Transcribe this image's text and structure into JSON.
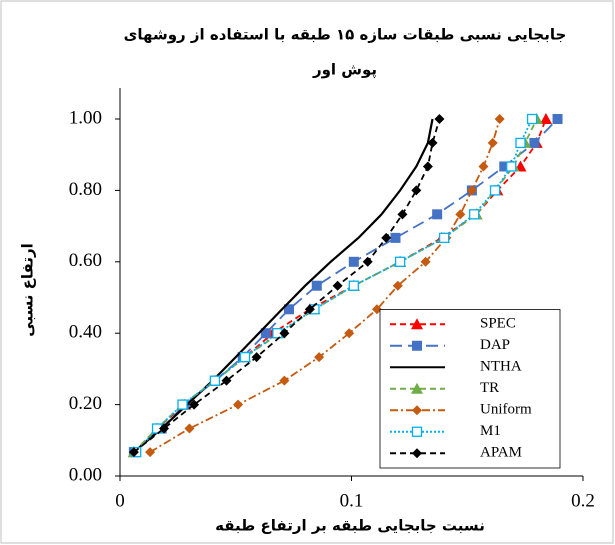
{
  "chart_data": {
    "type": "line",
    "title_lines": [
      "جابجایی نسبی طبقات سازه ۱۵ طبقه با استفاده از روشهای",
      "پوش اور"
    ],
    "xlabel": "نسبت جابجایی طبقه بر ارتفاع طبقه",
    "ylabel": "ارتفاع نسبی",
    "xlim": [
      0,
      0.2
    ],
    "xticks": [
      0,
      0.1,
      0.2
    ],
    "ylim": [
      0,
      1.0
    ],
    "yticks": [
      {
        "value": 0,
        "label": "0.00"
      },
      {
        "value": 0.2,
        "label": "0.20"
      },
      {
        "value": 0.4,
        "label": "0.40"
      },
      {
        "value": 0.6,
        "label": "0.60"
      },
      {
        "value": 0.8,
        "label": "0.80"
      },
      {
        "value": 1.0,
        "label": "1.00"
      }
    ],
    "grid": false,
    "legend": "lower right",
    "y": [
      0.067,
      0.133,
      0.2,
      0.267,
      0.333,
      0.4,
      0.467,
      0.533,
      0.6,
      0.667,
      0.733,
      0.8,
      0.867,
      0.933,
      1.0
    ],
    "series": [
      {
        "name": "SPEC",
        "color": "#ff0000",
        "marker": "triangle",
        "line_style": "dashed",
        "values": [
          0.006,
          0.016,
          0.028,
          0.041,
          0.054,
          0.066,
          0.082,
          0.101,
          0.121,
          0.139,
          0.154,
          0.163,
          0.173,
          0.18,
          0.184
        ]
      },
      {
        "name": "DAP",
        "color": "#4472c4",
        "marker": "square",
        "line_style": "longdash",
        "values": [
          0.006,
          0.018,
          0.028,
          0.041,
          0.053,
          0.063,
          0.073,
          0.085,
          0.101,
          0.119,
          0.137,
          0.152,
          0.166,
          0.179,
          0.189
        ]
      },
      {
        "name": "NTHA",
        "color": "#000000",
        "marker": "none",
        "line_style": "solid",
        "values": [
          0.006,
          0.018,
          0.029,
          0.04,
          0.05,
          0.06,
          0.07,
          0.08,
          0.091,
          0.103,
          0.113,
          0.121,
          0.128,
          0.133,
          0.135
        ]
      },
      {
        "name": "TR",
        "color": "#70ad47",
        "marker": "triangle",
        "line_style": "dashed",
        "values": [
          0.006,
          0.016,
          0.027,
          0.041,
          0.054,
          0.069,
          0.084,
          0.101,
          0.121,
          0.14,
          0.154,
          0.162,
          0.17,
          0.175,
          0.18
        ]
      },
      {
        "name": "Uniform",
        "color": "#c55a11",
        "marker": "diamond",
        "line_style": "dashdot",
        "values": [
          0.013,
          0.03,
          0.051,
          0.071,
          0.086,
          0.099,
          0.111,
          0.12,
          0.132,
          0.141,
          0.147,
          0.152,
          0.157,
          0.161,
          0.164
        ]
      },
      {
        "name": "M1",
        "color": "#00b0f0",
        "marker": "opensquare",
        "line_style": "dotted",
        "values": [
          0.007,
          0.016,
          0.027,
          0.041,
          0.054,
          0.068,
          0.084,
          0.101,
          0.121,
          0.14,
          0.153,
          0.162,
          0.169,
          0.173,
          0.178
        ]
      },
      {
        "name": "APAM",
        "color": "#000000",
        "marker": "diamond",
        "line_style": "dashed",
        "values": [
          0.006,
          0.019,
          0.032,
          0.046,
          0.059,
          0.071,
          0.082,
          0.094,
          0.107,
          0.115,
          0.122,
          0.128,
          0.133,
          0.135,
          0.138
        ]
      }
    ]
  }
}
